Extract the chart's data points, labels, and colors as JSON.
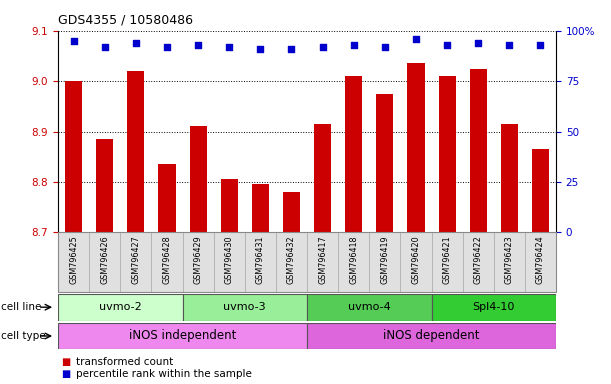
{
  "title": "GDS4355 / 10580486",
  "samples": [
    "GSM796425",
    "GSM796426",
    "GSM796427",
    "GSM796428",
    "GSM796429",
    "GSM796430",
    "GSM796431",
    "GSM796432",
    "GSM796417",
    "GSM796418",
    "GSM796419",
    "GSM796420",
    "GSM796421",
    "GSM796422",
    "GSM796423",
    "GSM796424"
  ],
  "transformed_count": [
    9.0,
    8.885,
    9.02,
    8.835,
    8.91,
    8.805,
    8.795,
    8.78,
    8.915,
    9.01,
    8.975,
    9.035,
    9.01,
    9.025,
    8.915,
    8.865
  ],
  "percentile": [
    95,
    92,
    94,
    92,
    93,
    92,
    91,
    91,
    92,
    93,
    92,
    96,
    93,
    94,
    93,
    93
  ],
  "ylim_left": [
    8.7,
    9.1
  ],
  "ylim_right": [
    0,
    100
  ],
  "yticks_left": [
    8.7,
    8.8,
    8.9,
    9.0,
    9.1
  ],
  "yticks_right": [
    0,
    25,
    50,
    75,
    100
  ],
  "ytick_labels_right": [
    "0",
    "25",
    "50",
    "75",
    "100%"
  ],
  "bar_color": "#cc0000",
  "dot_color": "#0000cc",
  "cell_line_groups": [
    {
      "label": "uvmo-2",
      "start": 0,
      "end": 3,
      "color": "#ccffcc"
    },
    {
      "label": "uvmo-3",
      "start": 4,
      "end": 7,
      "color": "#99ee99"
    },
    {
      "label": "uvmo-4",
      "start": 8,
      "end": 11,
      "color": "#55cc55"
    },
    {
      "label": "Spl4-10",
      "start": 12,
      "end": 15,
      "color": "#33cc33"
    }
  ],
  "cell_type_groups": [
    {
      "label": "iNOS independent",
      "start": 0,
      "end": 7,
      "color": "#ee88ee"
    },
    {
      "label": "iNOS dependent",
      "start": 8,
      "end": 15,
      "color": "#dd66dd"
    }
  ],
  "legend_items": [
    {
      "label": "transformed count",
      "color": "#cc0000"
    },
    {
      "label": "percentile rank within the sample",
      "color": "#0000cc"
    }
  ],
  "bar_width": 0.55,
  "dot_size": 16
}
